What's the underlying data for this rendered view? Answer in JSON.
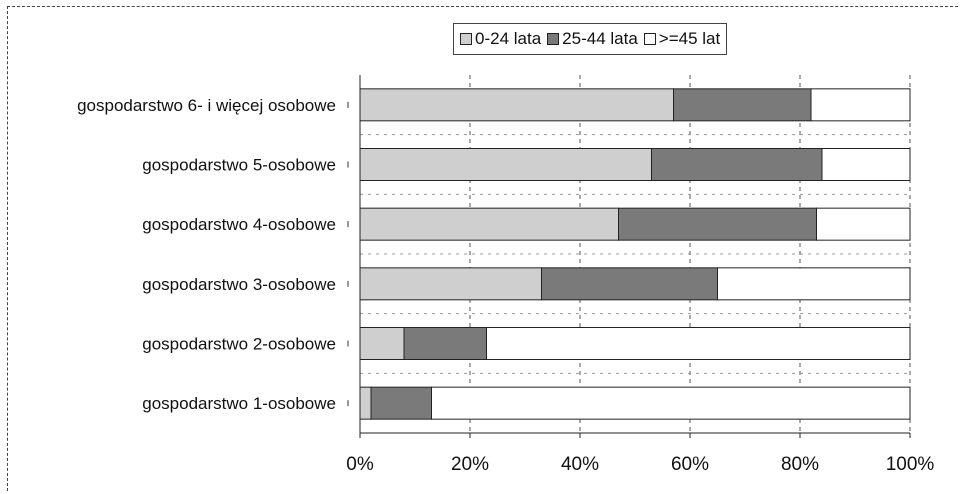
{
  "chart_data": {
    "type": "bar",
    "orientation": "horizontal",
    "stacked": "percent",
    "categories": [
      "gospodarstwo 1-osobowe",
      "gospodarstwo 2-osobowe",
      "gospodarstwo 3-osobowe",
      "gospodarstwo 4-osobowe",
      "gospodarstwo 5-osobowe",
      "gospodarstwo 6- i więcej osobowe"
    ],
    "series": [
      {
        "name": "0-24 lata",
        "values": [
          2,
          8,
          33,
          47,
          53,
          57
        ],
        "color": "#cfcfcf"
      },
      {
        "name": "25-44 lata",
        "values": [
          11,
          15,
          32,
          36,
          31,
          25
        ],
        "color": "#7a7a7a"
      },
      {
        "name": ">=45 lat",
        "values": [
          87,
          77,
          35,
          17,
          16,
          18
        ],
        "color": "#ffffff"
      }
    ],
    "xlim": [
      0,
      100
    ],
    "xticks": [
      "0%",
      "20%",
      "40%",
      "60%",
      "80%",
      "100%"
    ],
    "grid": "vertical-dashed",
    "legend_position": "top"
  }
}
